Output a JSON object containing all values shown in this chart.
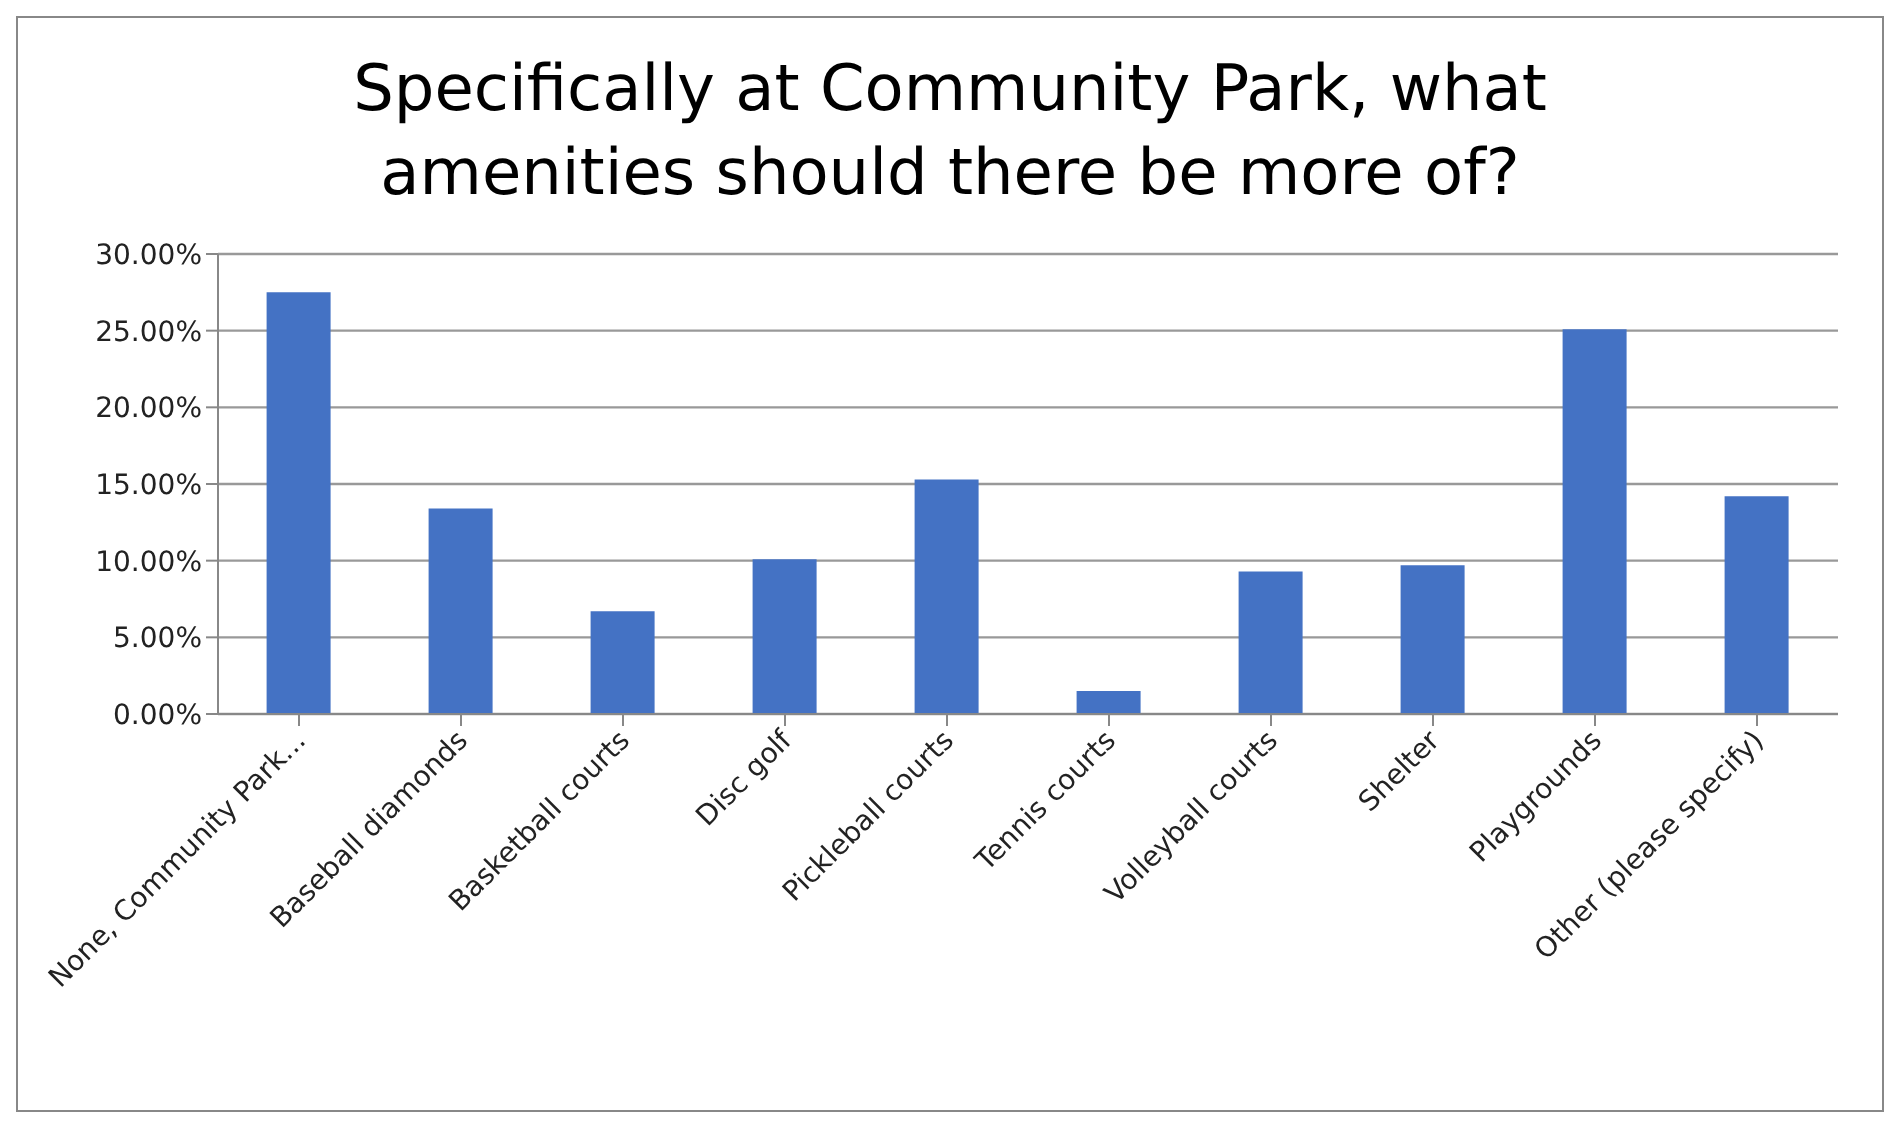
{
  "chart_data": {
    "type": "bar",
    "title": "Specifically at Community Park, what amenities should there be more of?",
    "categories": [
      "None, Community Park...",
      "Baseball diamonds",
      "Basketball courts",
      "Disc golf",
      "Pickleball courts",
      "Tennis courts",
      "Volleyball courts",
      "Shelter",
      "Playgrounds",
      "Other (please specify)"
    ],
    "values": [
      27.5,
      13.4,
      6.7,
      10.1,
      15.3,
      1.5,
      9.3,
      9.7,
      25.1,
      14.2
    ],
    "color": "#4472c4",
    "ylim": [
      0,
      30
    ],
    "yticks": [
      {
        "value": 0,
        "label": "0.00%"
      },
      {
        "value": 5,
        "label": "5.00%"
      },
      {
        "value": 10,
        "label": "10.00%"
      },
      {
        "value": 15,
        "label": "15.00%"
      },
      {
        "value": 20,
        "label": "20.00%"
      },
      {
        "value": 25,
        "label": "25.00%"
      },
      {
        "value": 30,
        "label": "30.00%"
      }
    ],
    "grid": "y",
    "legend": false
  }
}
